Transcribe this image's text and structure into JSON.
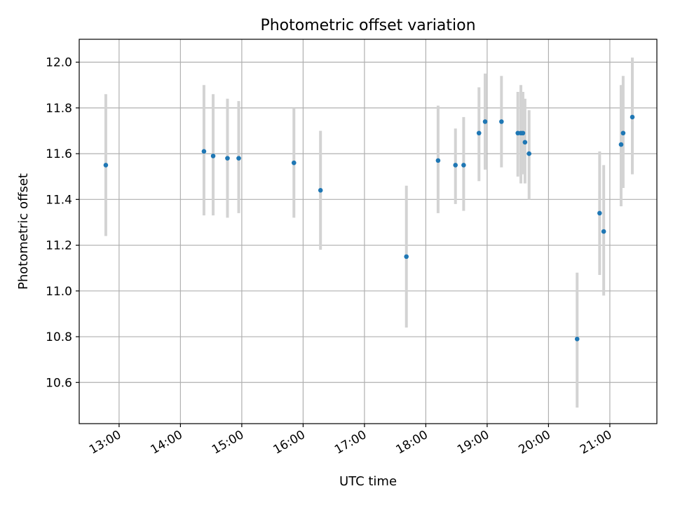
{
  "chart_data": {
    "type": "scatter",
    "title": "Photometric offset variation",
    "xlabel": "UTC time",
    "ylabel": "Photometric offset",
    "xlim": [
      "12:21",
      "21:46"
    ],
    "ylim": [
      10.42,
      12.1
    ],
    "x_ticks": [
      "13:00",
      "14:00",
      "15:00",
      "16:00",
      "17:00",
      "18:00",
      "19:00",
      "20:00",
      "21:00"
    ],
    "y_ticks": [
      "10.6",
      "10.8",
      "11.0",
      "11.2",
      "11.4",
      "11.6",
      "11.8",
      "12.0"
    ],
    "grid": true,
    "error_bars": true,
    "points": [
      {
        "x": "12:47",
        "y": 11.55,
        "low": 11.24,
        "high": 11.86
      },
      {
        "x": "14:23",
        "y": 11.61,
        "low": 11.33,
        "high": 11.9
      },
      {
        "x": "14:32",
        "y": 11.59,
        "low": 11.33,
        "high": 11.86
      },
      {
        "x": "14:46",
        "y": 11.58,
        "low": 11.32,
        "high": 11.84
      },
      {
        "x": "14:57",
        "y": 11.58,
        "low": 11.34,
        "high": 11.83
      },
      {
        "x": "15:51",
        "y": 11.56,
        "low": 11.32,
        "high": 11.8
      },
      {
        "x": "16:17",
        "y": 11.44,
        "low": 11.18,
        "high": 11.7
      },
      {
        "x": "17:41",
        "y": 11.15,
        "low": 10.84,
        "high": 11.46
      },
      {
        "x": "18:12",
        "y": 11.57,
        "low": 11.34,
        "high": 11.81
      },
      {
        "x": "18:29",
        "y": 11.55,
        "low": 11.38,
        "high": 11.71
      },
      {
        "x": "18:37",
        "y": 11.55,
        "low": 11.35,
        "high": 11.76
      },
      {
        "x": "18:52",
        "y": 11.69,
        "low": 11.48,
        "high": 11.89
      },
      {
        "x": "18:58",
        "y": 11.74,
        "low": 11.53,
        "high": 11.95
      },
      {
        "x": "19:14",
        "y": 11.74,
        "low": 11.54,
        "high": 11.94
      },
      {
        "x": "19:30",
        "y": 11.69,
        "low": 11.5,
        "high": 11.87
      },
      {
        "x": "19:33",
        "y": 11.69,
        "low": 11.47,
        "high": 11.9
      },
      {
        "x": "19:35",
        "y": 11.69,
        "low": 11.51,
        "high": 11.87
      },
      {
        "x": "19:37",
        "y": 11.65,
        "low": 11.47,
        "high": 11.84
      },
      {
        "x": "19:41",
        "y": 11.6,
        "low": 11.4,
        "high": 11.79
      },
      {
        "x": "20:28",
        "y": 10.79,
        "low": 10.49,
        "high": 11.08
      },
      {
        "x": "20:50",
        "y": 11.34,
        "low": 11.07,
        "high": 11.61
      },
      {
        "x": "20:54",
        "y": 11.26,
        "low": 10.98,
        "high": 11.55
      },
      {
        "x": "21:11",
        "y": 11.64,
        "low": 11.37,
        "high": 11.9
      },
      {
        "x": "21:13",
        "y": 11.69,
        "low": 11.45,
        "high": 11.94
      },
      {
        "x": "21:22",
        "y": 11.76,
        "low": 11.51,
        "high": 12.02
      }
    ],
    "colors": {
      "point": "#1f77b4",
      "error_bar": "#d3d3d3",
      "grid": "#b0b0b0",
      "axes": "#000000"
    }
  }
}
